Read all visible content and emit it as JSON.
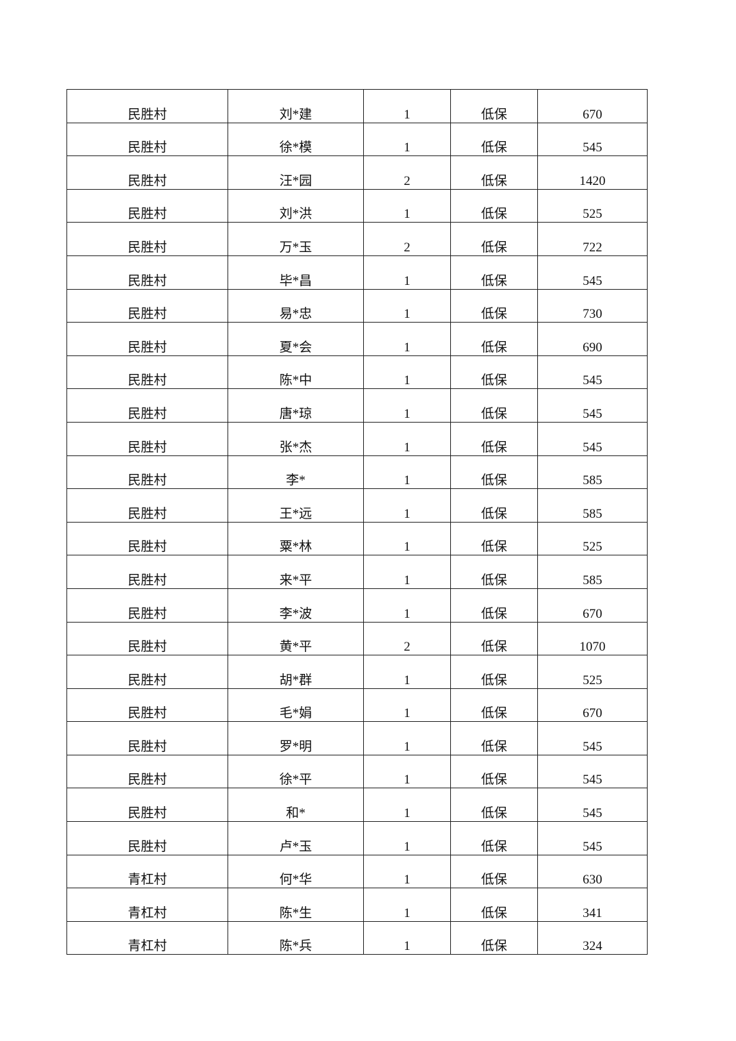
{
  "table": {
    "rows": [
      [
        "民胜村",
        "刘*建",
        "1",
        "低保",
        "670"
      ],
      [
        "民胜村",
        "徐*模",
        "1",
        "低保",
        "545"
      ],
      [
        "民胜村",
        "汪*园",
        "2",
        "低保",
        "1420"
      ],
      [
        "民胜村",
        "刘*洪",
        "1",
        "低保",
        "525"
      ],
      [
        "民胜村",
        "万*玉",
        "2",
        "低保",
        "722"
      ],
      [
        "民胜村",
        "毕*昌",
        "1",
        "低保",
        "545"
      ],
      [
        "民胜村",
        "易*忠",
        "1",
        "低保",
        "730"
      ],
      [
        "民胜村",
        "夏*会",
        "1",
        "低保",
        "690"
      ],
      [
        "民胜村",
        "陈*中",
        "1",
        "低保",
        "545"
      ],
      [
        "民胜村",
        "唐*琼",
        "1",
        "低保",
        "545"
      ],
      [
        "民胜村",
        "张*杰",
        "1",
        "低保",
        "545"
      ],
      [
        "民胜村",
        "李*",
        "1",
        "低保",
        "585"
      ],
      [
        "民胜村",
        "王*远",
        "1",
        "低保",
        "585"
      ],
      [
        "民胜村",
        "粟*林",
        "1",
        "低保",
        "525"
      ],
      [
        "民胜村",
        "来*平",
        "1",
        "低保",
        "585"
      ],
      [
        "民胜村",
        "李*波",
        "1",
        "低保",
        "670"
      ],
      [
        "民胜村",
        "黄*平",
        "2",
        "低保",
        "1070"
      ],
      [
        "民胜村",
        "胡*群",
        "1",
        "低保",
        "525"
      ],
      [
        "民胜村",
        "毛*娟",
        "1",
        "低保",
        "670"
      ],
      [
        "民胜村",
        "罗*明",
        "1",
        "低保",
        "545"
      ],
      [
        "民胜村",
        "徐*平",
        "1",
        "低保",
        "545"
      ],
      [
        "民胜村",
        "和*",
        "1",
        "低保",
        "545"
      ],
      [
        "民胜村",
        "卢*玉",
        "1",
        "低保",
        "545"
      ],
      [
        "青杠村",
        "何*华",
        "1",
        "低保",
        "630"
      ],
      [
        "青杠村",
        "陈*生",
        "1",
        "低保",
        "341"
      ],
      [
        "青杠村",
        "陈*兵",
        "1",
        "低保",
        "324"
      ]
    ]
  }
}
